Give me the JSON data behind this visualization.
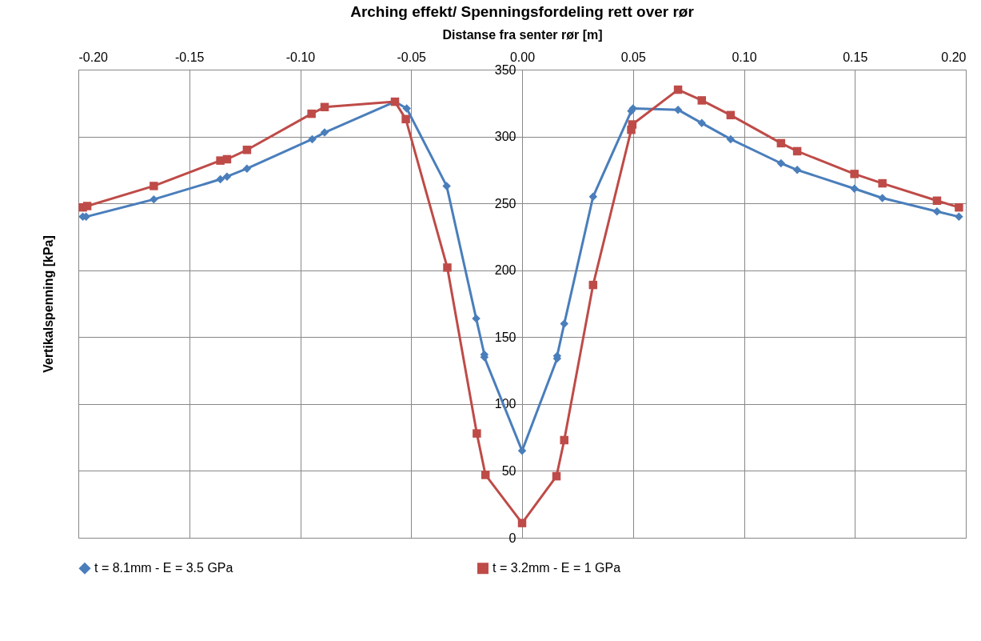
{
  "chart_data": {
    "type": "line",
    "title": "Arching effekt/ Spenningsfordeling rett over rør",
    "xlabel": "Distanse fra senter rør [m]",
    "ylabel": "Vertikalspenning [kPa]",
    "xlim": [
      -0.2,
      0.2
    ],
    "xticks": [
      {
        "value": -0.2,
        "label": "-0.20"
      },
      {
        "value": -0.15,
        "label": "-0.15"
      },
      {
        "value": -0.1,
        "label": "-0.10"
      },
      {
        "value": -0.05,
        "label": "-0.05"
      },
      {
        "value": 0,
        "label": "0.00"
      },
      {
        "value": 0.05,
        "label": "0.05"
      },
      {
        "value": 0.1,
        "label": "0.10"
      },
      {
        "value": 0.15,
        "label": "0.15"
      },
      {
        "value": 0.2,
        "label": "0.20"
      }
    ],
    "ylim": [
      0,
      350
    ],
    "yticks": [
      0,
      50,
      100,
      150,
      200,
      250,
      300,
      350
    ],
    "grid": true,
    "legend": "bottom",
    "series": [
      {
        "name": "t = 8.1mm - E = 3.5 GPa",
        "color": "#4a7ebb",
        "marker": "diamond",
        "x": [
          -0.198,
          -0.1965,
          -0.166,
          -0.136,
          -0.133,
          -0.124,
          -0.0946,
          -0.089,
          -0.0573,
          -0.052,
          -0.034,
          -0.0207,
          -0.017,
          -0.017,
          0,
          0.0158,
          0.0158,
          0.019,
          0.032,
          0.0492,
          0.05,
          0.0703,
          0.081,
          0.094,
          0.1167,
          0.124,
          0.1498,
          0.1624,
          0.187,
          0.1969
        ],
        "values": [
          240,
          240,
          253,
          268,
          270,
          276,
          298,
          303,
          326,
          321,
          263,
          164,
          137,
          135,
          65,
          134,
          136,
          160,
          255,
          319,
          321,
          320,
          310,
          298,
          280,
          275,
          261,
          254,
          244,
          240
        ]
      },
      {
        "name": "t = 3.2mm - E = 1 GPa",
        "color": "#be4b48",
        "marker": "square",
        "x": [
          -0.198,
          -0.196,
          -0.166,
          -0.136,
          -0.133,
          -0.124,
          -0.0949,
          -0.089,
          -0.0573,
          -0.0524,
          -0.0337,
          -0.0204,
          -0.0165,
          0,
          0.0155,
          0.019,
          0.032,
          0.0492,
          0.0497,
          0.0703,
          0.081,
          0.094,
          0.1167,
          0.124,
          0.1498,
          0.1624,
          0.187,
          0.1969
        ],
        "values": [
          247,
          248,
          263,
          282,
          283,
          290,
          317,
          322,
          326,
          313,
          202,
          78,
          47,
          11,
          46,
          73,
          189,
          305,
          309,
          335,
          327,
          316,
          295,
          289,
          272,
          265,
          252,
          247
        ]
      }
    ]
  }
}
